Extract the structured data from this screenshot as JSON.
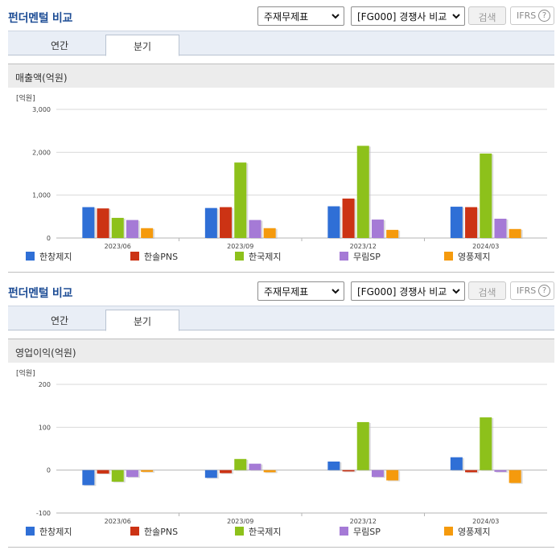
{
  "panels": [
    {
      "title": "펀더멘털 비교",
      "select_statement": "주재무제표",
      "select_compare": "[FG000] 경쟁사 비교",
      "search_label": "검색",
      "ifrs_label": "IFRS",
      "help_glyph": "?",
      "tabs": [
        {
          "label": "연간"
        },
        {
          "label": "분기"
        }
      ],
      "active_tab": 1,
      "section_title": "매출액(억원)"
    },
    {
      "title": "펀더멘털 비교",
      "select_statement": "주재무제표",
      "select_compare": "[FG000] 경쟁사 비교",
      "search_label": "검색",
      "ifrs_label": "IFRS",
      "help_glyph": "?",
      "tabs": [
        {
          "label": "연간"
        },
        {
          "label": "분기"
        }
      ],
      "active_tab": 1,
      "section_title": "영업이익(억원)"
    }
  ],
  "colors": {
    "series": [
      "#2f6fd6",
      "#cc3314",
      "#8dc11b",
      "#a57ad6",
      "#f59a0d"
    ],
    "grid": "#d9d9d9",
    "axis": "#b5b5b5"
  },
  "icons": [
    "chevron-down-icon",
    "help-circle-icon"
  ],
  "chart_data": [
    {
      "type": "bar",
      "title": "매출액(억원)",
      "unit": "[억원]",
      "categories": [
        "2023/06",
        "2023/09",
        "2023/12",
        "2024/03"
      ],
      "ylim": [
        0,
        3000
      ],
      "yticks": [
        0,
        1000,
        2000,
        3000
      ],
      "ytick_labels": [
        "0",
        "1,000",
        "2,000",
        "3,000"
      ],
      "grid": true,
      "legend": "bottom",
      "series": [
        {
          "name": "한창제지",
          "values": [
            720,
            700,
            740,
            730
          ]
        },
        {
          "name": "한솔PNS",
          "values": [
            690,
            720,
            920,
            720
          ]
        },
        {
          "name": "한국제지",
          "values": [
            470,
            1760,
            2150,
            1970
          ]
        },
        {
          "name": "무림SP",
          "values": [
            420,
            420,
            430,
            450
          ]
        },
        {
          "name": "영풍제지",
          "values": [
            230,
            230,
            190,
            210
          ]
        }
      ]
    },
    {
      "type": "bar",
      "title": "영업이익(억원)",
      "unit": "[억원]",
      "categories": [
        "2023/06",
        "2023/09",
        "2023/12",
        "2024/03"
      ],
      "ylim": [
        -100,
        200
      ],
      "yticks": [
        -100,
        0,
        100,
        200
      ],
      "ytick_labels": [
        "-100",
        "0",
        "100",
        "200"
      ],
      "grid": true,
      "legend": "bottom",
      "series": [
        {
          "name": "한창제지",
          "values": [
            -35,
            -18,
            20,
            30
          ]
        },
        {
          "name": "한솔PNS",
          "values": [
            -8,
            -7,
            -3,
            -5
          ]
        },
        {
          "name": "한국제지",
          "values": [
            -27,
            26,
            112,
            123
          ]
        },
        {
          "name": "무림SP",
          "values": [
            -16,
            15,
            -16,
            -4
          ]
        },
        {
          "name": "영풍제지",
          "values": [
            -4,
            -5,
            -24,
            -30
          ]
        }
      ]
    }
  ]
}
